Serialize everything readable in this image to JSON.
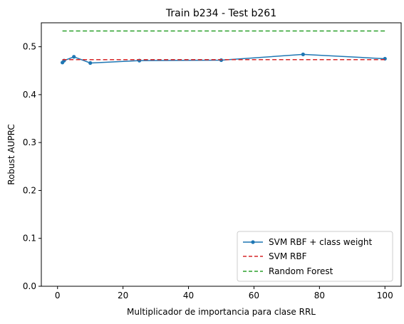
{
  "chart_data": {
    "type": "line",
    "title": "Train b234 - Test b261",
    "xlabel": "Multiplicador de importancia para clase RRL",
    "ylabel": "Robust AUPRC",
    "xlim": [
      -4.95,
      104.95
    ],
    "ylim": [
      0.0,
      0.55
    ],
    "x_ticks": [
      0,
      20,
      40,
      60,
      80,
      100
    ],
    "x_tick_labels": [
      "0",
      "20",
      "40",
      "60",
      "80",
      "100"
    ],
    "y_ticks": [
      0.0,
      0.1,
      0.2,
      0.3,
      0.4,
      0.5
    ],
    "y_tick_labels": [
      "0.0",
      "0.1",
      "0.2",
      "0.3",
      "0.4",
      "0.5"
    ],
    "grid": false,
    "legend_position": "lower-right",
    "series": [
      {
        "name": "SVM RBF + class weight",
        "style": "solid-marker",
        "color": "#1f77b4",
        "x": [
          1.5,
          2,
          5,
          10,
          25,
          50,
          75,
          100
        ],
        "y": [
          0.467,
          0.471,
          0.479,
          0.466,
          0.471,
          0.472,
          0.484,
          0.475
        ]
      },
      {
        "name": "SVM RBF",
        "style": "dashed",
        "color": "#d62728",
        "x": [
          1.5,
          100
        ],
        "y": [
          0.473,
          0.473
        ]
      },
      {
        "name": "Random Forest",
        "style": "dashed",
        "color": "#2ca02c",
        "x": [
          1.5,
          100
        ],
        "y": [
          0.533,
          0.533
        ]
      }
    ]
  }
}
